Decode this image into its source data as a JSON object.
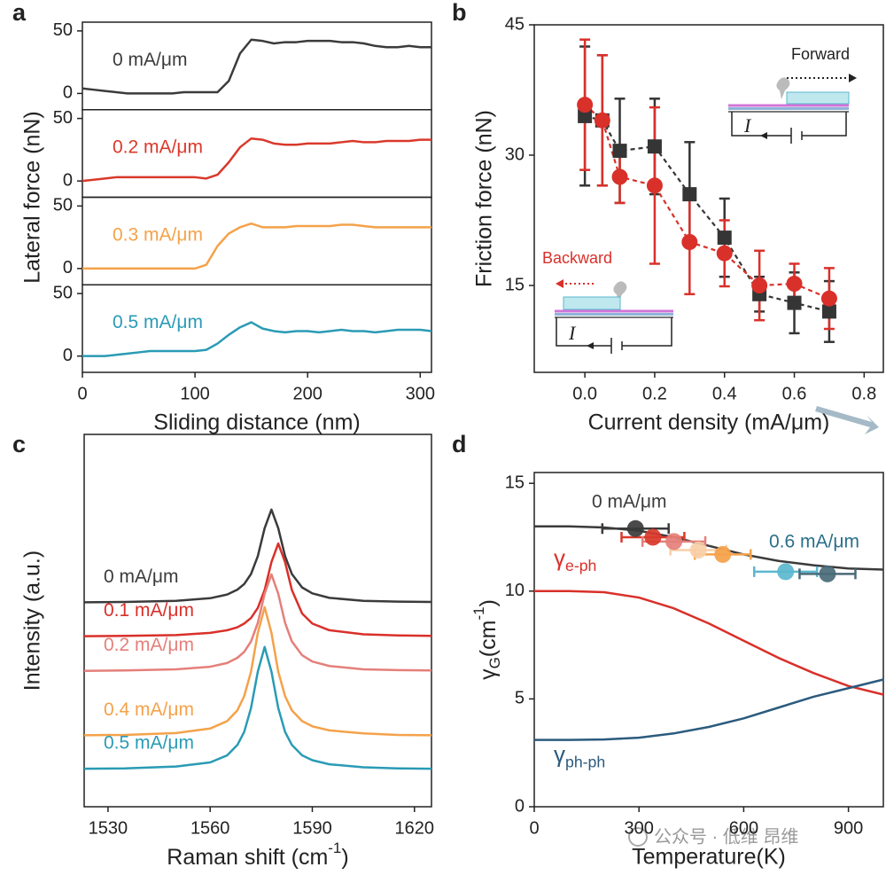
{
  "chart_data": [
    {
      "type": "small-multiples",
      "panel_label": "a",
      "x_label": "Sliding distance (nm)",
      "y_label": "Lateral force (nN)",
      "xlim": [
        0,
        310
      ],
      "xticks": [
        0,
        100,
        200,
        300
      ],
      "ylim": [
        -13,
        57
      ],
      "yticks": [
        0,
        50
      ],
      "x": [
        0,
        10,
        20,
        30,
        40,
        50,
        60,
        70,
        80,
        90,
        100,
        110,
        120,
        130,
        140,
        150,
        160,
        170,
        180,
        190,
        200,
        210,
        220,
        230,
        240,
        250,
        260,
        270,
        280,
        290,
        300,
        310
      ],
      "series": [
        {
          "name": "0 mA/μm",
          "color": "#3b3b3b",
          "values": [
            4,
            3,
            2,
            1,
            0,
            0,
            0,
            0,
            0,
            1,
            1,
            1,
            1,
            10,
            32,
            43,
            42,
            40,
            41,
            41,
            42,
            42,
            42,
            41,
            41,
            40,
            38,
            37,
            37,
            38,
            37,
            37
          ]
        },
        {
          "name": "0.2 mA/μm",
          "color": "#d9392b",
          "values": [
            0,
            1,
            2,
            3,
            3,
            3,
            3,
            3,
            3,
            3,
            3,
            2,
            5,
            15,
            27,
            34,
            33,
            30,
            29,
            29,
            30,
            30,
            30,
            31,
            32,
            31,
            31,
            32,
            32,
            32,
            33,
            33
          ]
        },
        {
          "name": "0.3 mA/μm",
          "color": "#f4a24a",
          "values": [
            0,
            0,
            0,
            0,
            0,
            0,
            0,
            0,
            0,
            0,
            0,
            3,
            18,
            28,
            33,
            36,
            33,
            33,
            33,
            34,
            34,
            34,
            34,
            35,
            35,
            34,
            33,
            33,
            33,
            33,
            33,
            33
          ]
        },
        {
          "name": "0.5 mA/μm",
          "color": "#2a9bb5",
          "values": [
            0,
            0,
            0,
            1,
            2,
            3,
            4,
            4,
            4,
            4,
            4,
            5,
            10,
            17,
            23,
            27,
            22,
            20,
            19,
            20,
            20,
            19,
            20,
            21,
            20,
            20,
            19,
            20,
            21,
            21,
            21,
            20
          ]
        }
      ]
    },
    {
      "type": "errorbar",
      "panel_label": "b",
      "x_label": "Current density (mA/μm)",
      "y_label": "Friction force (nN)",
      "xlim": [
        -0.145,
        0.855
      ],
      "xticks": [
        {
          "value": 0,
          "label": "0.0"
        },
        0.2,
        0.4,
        0.6,
        0.8
      ],
      "ylim": [
        5,
        45
      ],
      "yticks": [
        15,
        30,
        45
      ],
      "x": [
        0,
        0.05,
        0.1,
        0.2,
        0.3,
        0.4,
        0.5,
        0.6,
        0.7
      ],
      "series": [
        {
          "name": "Forward",
          "color": "#353535",
          "marker": "square",
          "values": [
            34.5,
            34,
            30.5,
            31,
            25.5,
            20.5,
            14,
            13,
            12
          ],
          "errors": [
            8,
            7.5,
            6,
            5.5,
            6,
            4.5,
            2,
            3.5,
            3.5
          ]
        },
        {
          "name": "Backward",
          "color": "#d9302a",
          "marker": "circle",
          "values": [
            35.8,
            34,
            27.5,
            26.5,
            20,
            18.7,
            15,
            15.2,
            13.5
          ],
          "errors": [
            7.5,
            7.5,
            3,
            9,
            6,
            3.8,
            4,
            2.3,
            3.5
          ]
        }
      ],
      "inset_current_label": "I"
    },
    {
      "type": "line",
      "panel_label": "c",
      "x_label": {
        "text": "Raman shift (cm",
        "sup": "-1",
        "end": ")"
      },
      "y_label": "Intensity (a.u.)",
      "xlim": [
        1523,
        1625
      ],
      "xticks": [
        1530,
        1560,
        1590,
        1620
      ],
      "ylim": [
        0,
        10
      ],
      "x": [
        1523,
        1535,
        1550,
        1560,
        1565,
        1568,
        1570,
        1572,
        1574,
        1576,
        1578,
        1580,
        1582,
        1584,
        1587,
        1590,
        1595,
        1605,
        1615,
        1625
      ],
      "series": [
        {
          "name": "0 mA/μm",
          "color": "#3b3b3b",
          "values": [
            5.49,
            5.5,
            5.53,
            5.6,
            5.7,
            5.83,
            5.98,
            6.25,
            6.73,
            7.48,
            7.98,
            7.48,
            6.73,
            6.25,
            5.89,
            5.73,
            5.61,
            5.53,
            5.51,
            5.5
          ]
        },
        {
          "name": "0.1 mA/μm",
          "color": "#d9302a",
          "values": [
            4.58,
            4.59,
            4.61,
            4.67,
            4.74,
            4.82,
            4.92,
            5.07,
            5.34,
            5.82,
            6.57,
            7.07,
            6.57,
            5.82,
            5.19,
            4.92,
            4.74,
            4.63,
            4.6,
            4.59
          ]
        },
        {
          "name": "0.2 mA/μm",
          "color": "#e57f7a",
          "values": [
            3.65,
            3.66,
            3.69,
            3.76,
            3.86,
            4.0,
            4.16,
            4.44,
            4.94,
            5.72,
            6.24,
            5.72,
            4.94,
            4.44,
            4.07,
            3.9,
            3.78,
            3.69,
            3.67,
            3.66
          ]
        },
        {
          "name": "0.4 mA/μm",
          "color": "#f4a24a",
          "values": [
            1.92,
            1.93,
            1.98,
            2.1,
            2.3,
            2.59,
            2.97,
            3.63,
            4.67,
            5.36,
            4.67,
            3.63,
            2.97,
            2.59,
            2.3,
            2.16,
            2.05,
            1.97,
            1.93,
            1.92
          ]
        },
        {
          "name": "0.5 mA/μm",
          "color": "#2a9bb5",
          "values": [
            1.02,
            1.03,
            1.08,
            1.19,
            1.38,
            1.66,
            2.01,
            2.65,
            3.63,
            4.29,
            3.63,
            2.65,
            2.01,
            1.66,
            1.38,
            1.25,
            1.14,
            1.06,
            1.03,
            1.02
          ]
        }
      ]
    },
    {
      "type": "line",
      "panel_label": "d",
      "x_label": "Temperature(K)",
      "y_label": {
        "text": "γ",
        "sub": "G",
        "end": "(cm",
        "sup": "-1",
        "tail": ")"
      },
      "xlim": [
        0,
        1000
      ],
      "xticks": [
        0,
        300,
        600,
        900
      ],
      "ylim": [
        0,
        15.5
      ],
      "yticks": [
        0,
        5,
        10,
        15
      ],
      "x": [
        0,
        100,
        200,
        300,
        400,
        500,
        600,
        700,
        800,
        900,
        1000
      ],
      "series": [
        {
          "color": "#3b3b3b",
          "values": [
            13,
            13,
            12.95,
            12.8,
            12.5,
            12.1,
            11.7,
            11.4,
            11.2,
            11.05,
            11
          ]
        },
        {
          "name": {
            "text": "γ",
            "sub": "e-ph"
          },
          "color": "#d9302a",
          "values": [
            10,
            10,
            9.95,
            9.7,
            9.2,
            8.5,
            7.7,
            6.9,
            6.2,
            5.6,
            5.2
          ]
        },
        {
          "name": {
            "text": "γ",
            "sub": "ph-ph"
          },
          "color": "#2b5b7e",
          "values": [
            3.1,
            3.1,
            3.12,
            3.2,
            3.4,
            3.7,
            4.1,
            4.6,
            5.1,
            5.5,
            5.9
          ]
        }
      ],
      "points": {
        "x": [
          290,
          340,
          400,
          470,
          540,
          720,
          840
        ],
        "values": [
          12.9,
          12.5,
          12.3,
          11.9,
          11.7,
          10.9,
          10.8
        ],
        "xerr": [
          95,
          90,
          90,
          80,
          80,
          90,
          80
        ],
        "colors": [
          "#3b3b3b",
          "#d9392b",
          "#e57f7a",
          "#f8cfa8",
          "#f4a24a",
          "#5bb7cf",
          "#4a6a78"
        ]
      },
      "annotations": [
        {
          "text": "0 mA/μm",
          "color": "#3b3b3b"
        },
        {
          "text": "0.6 mA/μm",
          "color": "#2a6f8a"
        }
      ]
    }
  ],
  "watermark": "公众号 · 低维 昂维"
}
